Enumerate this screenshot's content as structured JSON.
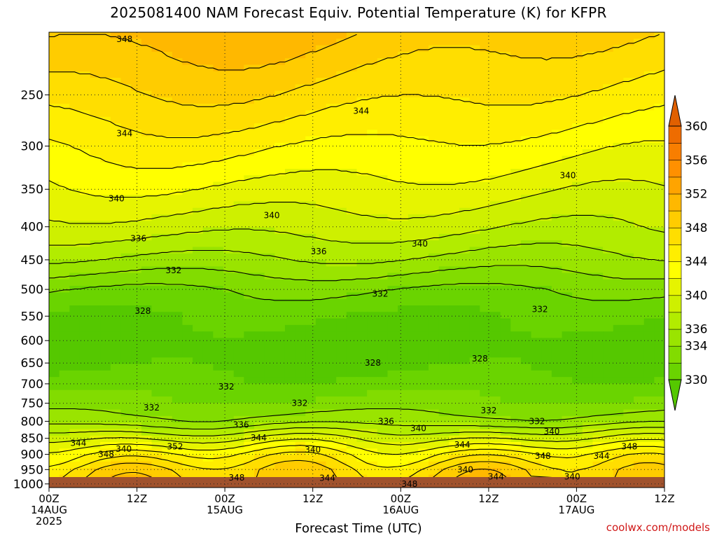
{
  "title": "2025081400 NAM Forecast Equiv. Potential Temperature (K) for KFPR",
  "credit": "coolwx.com/models",
  "chart_data": {
    "type": "heatmap",
    "title": "2025081400 NAM Forecast Equiv. Potential Temperature (K) for KFPR",
    "xlabel": "Forecast Time (UTC)",
    "ylabel": "",
    "y_scale": "log-pressure",
    "y_ticks": [
      250,
      300,
      350,
      400,
      450,
      500,
      550,
      600,
      650,
      700,
      750,
      800,
      850,
      900,
      950,
      1000
    ],
    "ylim": [
      200,
      1013
    ],
    "x_ticks": [
      {
        "hour": 0,
        "line1": "00Z",
        "line2": "14AUG",
        "line3": "2025"
      },
      {
        "hour": 12,
        "line1": "12Z",
        "line2": "",
        "line3": ""
      },
      {
        "hour": 24,
        "line1": "00Z",
        "line2": "15AUG",
        "line3": ""
      },
      {
        "hour": 36,
        "line1": "12Z",
        "line2": "",
        "line3": ""
      },
      {
        "hour": 48,
        "line1": "00Z",
        "line2": "16AUG",
        "line3": ""
      },
      {
        "hour": 60,
        "line1": "12Z",
        "line2": "",
        "line3": ""
      },
      {
        "hour": 72,
        "line1": "00Z",
        "line2": "17AUG",
        "line3": ""
      },
      {
        "hour": 84,
        "line1": "12Z",
        "line2": "",
        "line3": ""
      }
    ],
    "xlim": [
      0,
      84
    ],
    "colorbar": {
      "levels": [
        330,
        332,
        334,
        336,
        338,
        340,
        342,
        344,
        346,
        348,
        350,
        352,
        354,
        356,
        358,
        360
      ],
      "labels": [
        330,
        334,
        336,
        340,
        344,
        348,
        352,
        356,
        360
      ],
      "colors": [
        "#6ad400",
        "#82dc00",
        "#9ae400",
        "#b2ec00",
        "#cef000",
        "#e6f400",
        "#ffff00",
        "#ffee00",
        "#ffde00",
        "#ffcc00",
        "#ffb800",
        "#ffa400",
        "#ff9000",
        "#f87e00",
        "#ee6c00"
      ],
      "under_color": "#55c800",
      "over_color": "#e06000"
    },
    "contour_labels": [
      {
        "text": "348",
        "hour": 10.3,
        "p": 205
      },
      {
        "text": "344",
        "hour": 10.3,
        "p": 287
      },
      {
        "text": "344",
        "hour": 42.6,
        "p": 265
      },
      {
        "text": "340",
        "hour": 9.2,
        "p": 362
      },
      {
        "text": "340",
        "hour": 30.4,
        "p": 384
      },
      {
        "text": "340",
        "hour": 50.6,
        "p": 425
      },
      {
        "text": "340",
        "hour": 70.8,
        "p": 333
      },
      {
        "text": "336",
        "hour": 12.2,
        "p": 417
      },
      {
        "text": "336",
        "hour": 36.8,
        "p": 437
      },
      {
        "text": "332",
        "hour": 17.0,
        "p": 467
      },
      {
        "text": "332",
        "hour": 45.2,
        "p": 508
      },
      {
        "text": "332",
        "hour": 67.0,
        "p": 537
      },
      {
        "text": "332",
        "hour": 24.2,
        "p": 707
      },
      {
        "text": "332",
        "hour": 14.0,
        "p": 762
      },
      {
        "text": "332",
        "hour": 34.2,
        "p": 750
      },
      {
        "text": "332",
        "hour": 60.0,
        "p": 770
      },
      {
        "text": "332",
        "hour": 66.6,
        "p": 800
      },
      {
        "text": "328",
        "hour": 12.8,
        "p": 540
      },
      {
        "text": "328",
        "hour": 44.2,
        "p": 650
      },
      {
        "text": "328",
        "hour": 58.8,
        "p": 640
      },
      {
        "text": "336",
        "hour": 26.2,
        "p": 810
      },
      {
        "text": "336",
        "hour": 46.0,
        "p": 800
      },
      {
        "text": "340",
        "hour": 50.4,
        "p": 820
      },
      {
        "text": "340",
        "hour": 68.6,
        "p": 830
      },
      {
        "text": "340",
        "hour": 10.2,
        "p": 883
      },
      {
        "text": "340",
        "hour": 36.0,
        "p": 885
      },
      {
        "text": "340",
        "hour": 56.8,
        "p": 950
      },
      {
        "text": "340",
        "hour": 71.4,
        "p": 975
      },
      {
        "text": "344",
        "hour": 4.0,
        "p": 865
      },
      {
        "text": "344",
        "hour": 28.6,
        "p": 848
      },
      {
        "text": "344",
        "hour": 56.4,
        "p": 870
      },
      {
        "text": "344",
        "hour": 38.0,
        "p": 980
      },
      {
        "text": "344",
        "hour": 61.0,
        "p": 975
      },
      {
        "text": "344",
        "hour": 75.4,
        "p": 905
      },
      {
        "text": "348",
        "hour": 7.8,
        "p": 900
      },
      {
        "text": "348",
        "hour": 25.6,
        "p": 978
      },
      {
        "text": "348",
        "hour": 49.2,
        "p": 1000
      },
      {
        "text": "348",
        "hour": 67.4,
        "p": 905
      },
      {
        "text": "348",
        "hour": 79.2,
        "p": 875
      },
      {
        "text": "352",
        "hour": 17.2,
        "p": 875
      }
    ]
  }
}
